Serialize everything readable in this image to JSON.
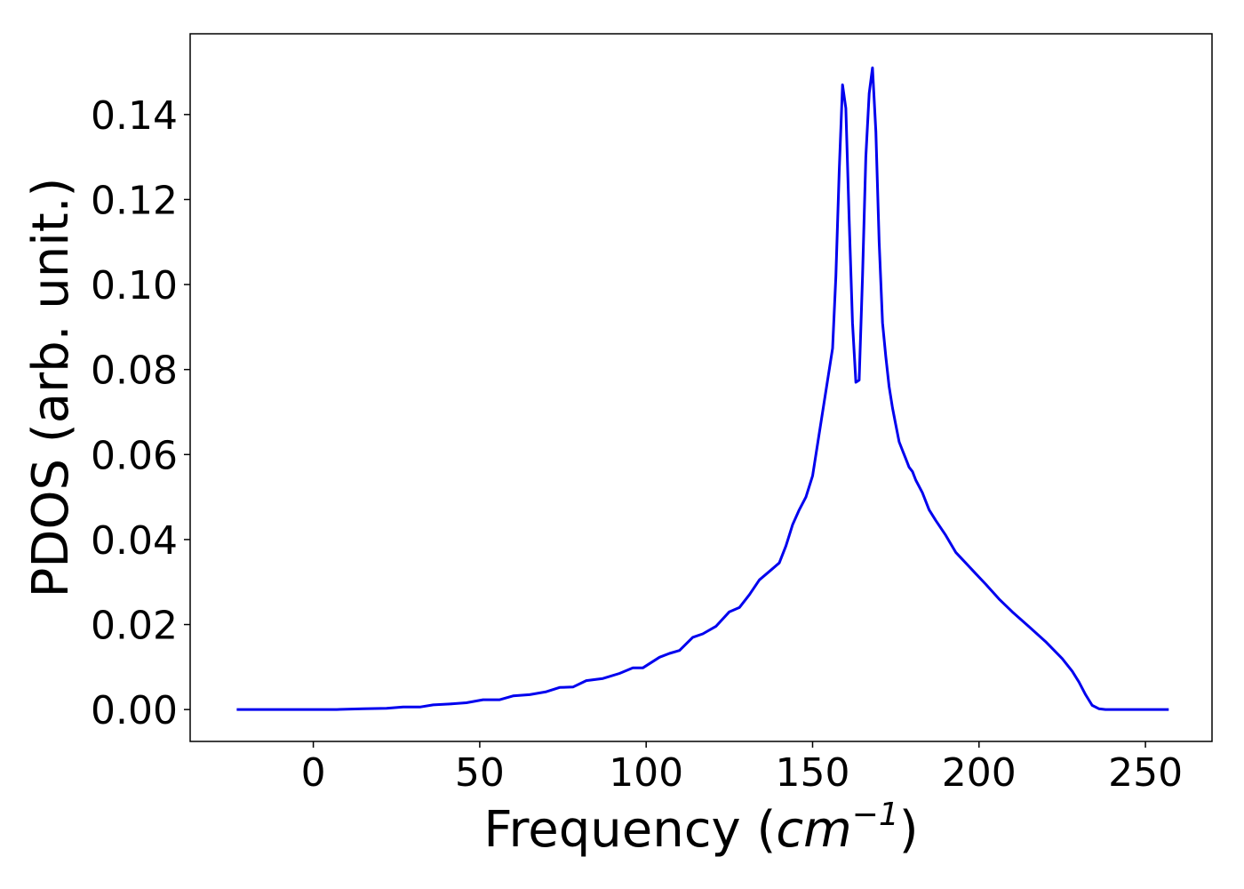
{
  "chart_data": {
    "type": "line",
    "title": "",
    "xlabel_main": "Frequency (",
    "xlabel_math": "cm",
    "xlabel_sup": "−1",
    "xlabel_close": ")",
    "ylabel": "PDOS (arb. unit.)",
    "xlim": [
      -37,
      270
    ],
    "ylim": [
      -0.0075,
      0.159
    ],
    "xticks": [
      0,
      50,
      100,
      150,
      200,
      250
    ],
    "xtick_labels": [
      "0",
      "50",
      "100",
      "150",
      "200",
      "250"
    ],
    "yticks": [
      0.0,
      0.02,
      0.04,
      0.06,
      0.08,
      0.1,
      0.12,
      0.14
    ],
    "ytick_labels": [
      "0.00",
      "0.02",
      "0.04",
      "0.06",
      "0.08",
      "0.10",
      "0.12",
      "0.14"
    ],
    "grid": false,
    "line_color": "#0000ee",
    "series": [
      {
        "x": [
          -23,
          0,
          7,
          15,
          22,
          27,
          32,
          36,
          41,
          46,
          51,
          56,
          60,
          65,
          70,
          74,
          78,
          82,
          87,
          92,
          96,
          99,
          104,
          107,
          110,
          114,
          117,
          121,
          125,
          128,
          131,
          134,
          137,
          140,
          142,
          144,
          146,
          148,
          150,
          152,
          154,
          156,
          157,
          158,
          159,
          160,
          161,
          162,
          163,
          164,
          165,
          166,
          167,
          168,
          169,
          170,
          171,
          172,
          173,
          174,
          175,
          176,
          177,
          178,
          179,
          180,
          181,
          183,
          185,
          187,
          190,
          193,
          196,
          199,
          202,
          206,
          210,
          215,
          220,
          225,
          228,
          230,
          232,
          234,
          236,
          238,
          242,
          257
        ],
        "y": [
          0,
          0,
          0,
          0.0002,
          0.0003,
          0.0006,
          0.0006,
          0.0011,
          0.0013,
          0.0016,
          0.0023,
          0.0023,
          0.0032,
          0.0035,
          0.0042,
          0.0052,
          0.0053,
          0.0068,
          0.0073,
          0.0085,
          0.0098,
          0.0098,
          0.0123,
          0.0132,
          0.0139,
          0.017,
          0.0178,
          0.0196,
          0.023,
          0.024,
          0.027,
          0.0305,
          0.0325,
          0.0345,
          0.0385,
          0.0435,
          0.047,
          0.05,
          0.055,
          0.065,
          0.075,
          0.085,
          0.102,
          0.127,
          0.147,
          0.1415,
          0.115,
          0.091,
          0.077,
          0.0775,
          0.102,
          0.13,
          0.145,
          0.151,
          0.136,
          0.11,
          0.091,
          0.083,
          0.076,
          0.071,
          0.067,
          0.063,
          0.061,
          0.059,
          0.057,
          0.056,
          0.054,
          0.051,
          0.047,
          0.0445,
          0.041,
          0.037,
          0.0345,
          0.032,
          0.0295,
          0.026,
          0.023,
          0.0195,
          0.016,
          0.012,
          0.009,
          0.0065,
          0.0035,
          0.001,
          0.0002,
          0,
          0,
          0
        ]
      }
    ]
  }
}
